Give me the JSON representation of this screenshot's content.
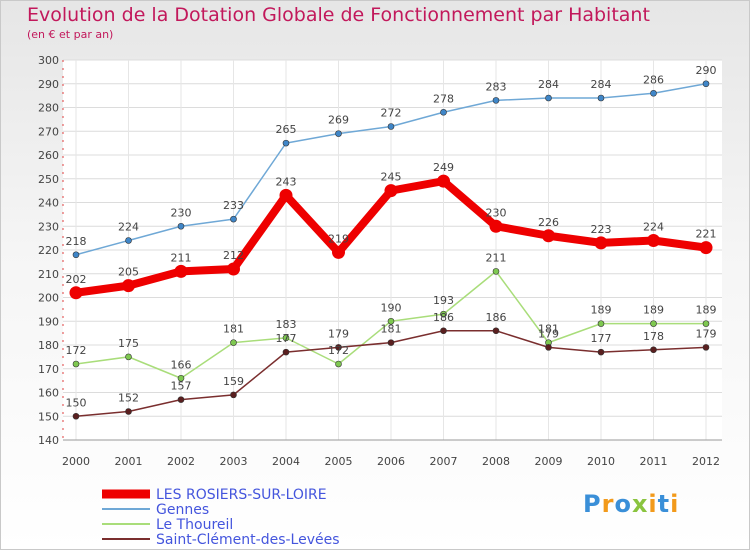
{
  "header": {
    "title": "Evolution de la Dotation Globale de Fonctionnement par Habitant",
    "subtitle": "(en € et par an)"
  },
  "logo_text": "Proxiti",
  "chart_data": {
    "type": "line",
    "title": "Evolution de la Dotation Globale de Fonctionnement par Habitant",
    "subtitle": "(en € et par an)",
    "xlabel": "",
    "ylabel": "",
    "x": [
      "2000",
      "2001",
      "2002",
      "2003",
      "2004",
      "2005",
      "2006",
      "2007",
      "2008",
      "2009",
      "2010",
      "2011",
      "2012"
    ],
    "ylim": [
      140,
      300
    ],
    "yticks": [
      140,
      150,
      160,
      170,
      180,
      190,
      200,
      210,
      220,
      230,
      240,
      250,
      260,
      270,
      280,
      290,
      300
    ],
    "grid": true,
    "legend_position": "bottom-left",
    "series": [
      {
        "name": "Gennes",
        "color": "#6fa8d6",
        "marker": "#3f86c8",
        "values": [
          218,
          224,
          230,
          233,
          265,
          269,
          272,
          278,
          283,
          284,
          284,
          286,
          290
        ]
      },
      {
        "name": "Le Thoureil",
        "color": "#a9dd7a",
        "marker": "#7ec850",
        "values": [
          172,
          175,
          166,
          181,
          183,
          172,
          190,
          193,
          211,
          181,
          189,
          189,
          189
        ]
      },
      {
        "name": "Saint-Clément-des-Levées",
        "color": "#7a2e2e",
        "marker": "#5a1f1f",
        "values": [
          150,
          152,
          157,
          159,
          177,
          179,
          181,
          186,
          186,
          179,
          177,
          178,
          179
        ]
      },
      {
        "name": "LES ROSIERS-SUR-LOIRE",
        "color": "#ee0000",
        "marker": "#ee0000",
        "highlight": true,
        "values": [
          202,
          205,
          211,
          212,
          243,
          219,
          245,
          249,
          230,
          226,
          223,
          224,
          221
        ]
      }
    ],
    "legend": [
      "LES ROSIERS-SUR-LOIRE",
      "Gennes",
      "Le Thoureil",
      "Saint-Clément-des-Levées"
    ]
  }
}
